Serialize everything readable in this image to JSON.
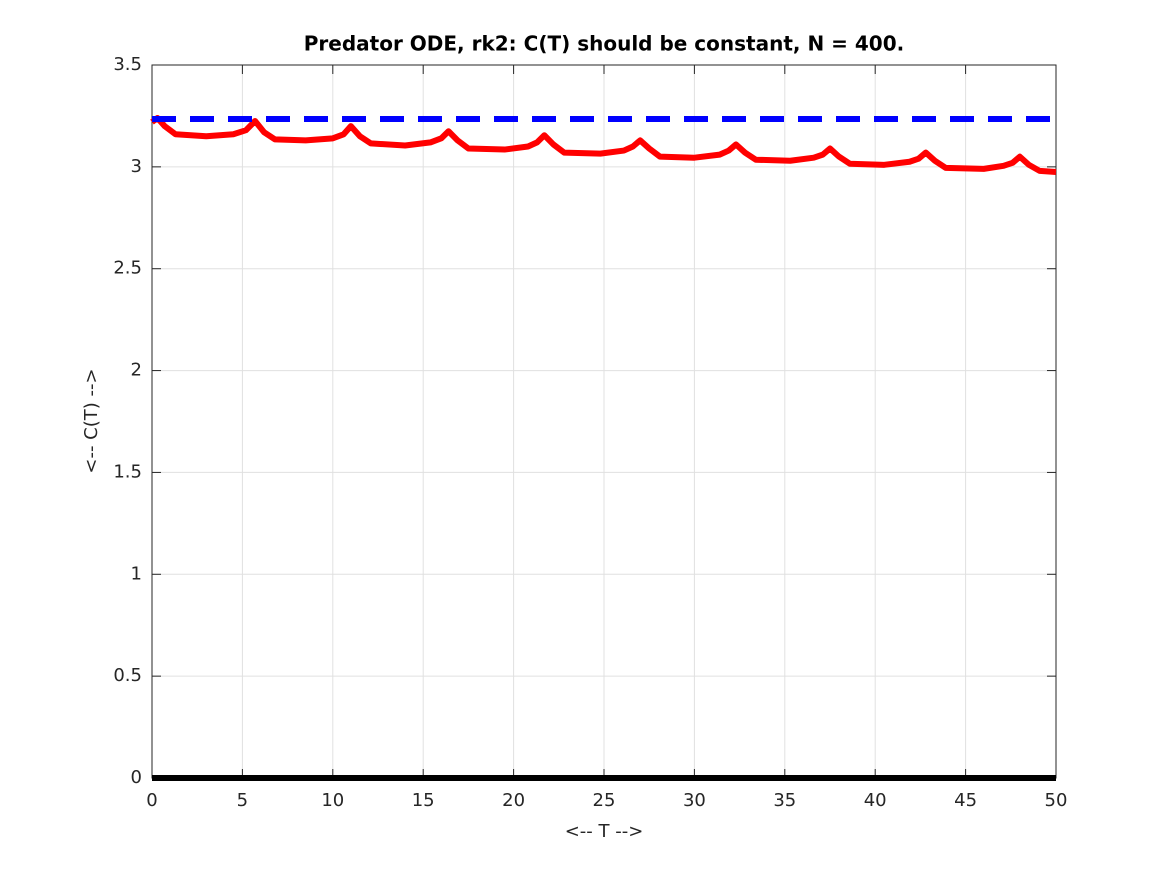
{
  "chart_data": {
    "type": "line",
    "title": "Predator ODE, rk2: C(T) should be constant, N = 400.",
    "x_label": "<-- T -->",
    "y_label": "<-- C(T) -->",
    "xlim": [
      0,
      50
    ],
    "xticks": [
      0,
      5,
      10,
      15,
      20,
      25,
      30,
      35,
      40,
      45,
      50
    ],
    "ylim": [
      0,
      3.5
    ],
    "yticks": [
      0,
      0.5,
      1,
      1.5,
      2,
      2.5,
      3,
      3.5
    ],
    "grid": true,
    "series": [
      {
        "color": "#ff0000",
        "line_style": "solid",
        "x": [
          0,
          0.3,
          0.7,
          1.3,
          3,
          4.5,
          5.2,
          5.7,
          6.2,
          6.8,
          8.5,
          10,
          10.6,
          11.0,
          11.5,
          12.1,
          14,
          15.4,
          16.0,
          16.4,
          16.9,
          17.5,
          19.5,
          20.8,
          21.3,
          21.7,
          22.2,
          22.8,
          24.8,
          26.1,
          26.6,
          27.0,
          27.5,
          28.1,
          30,
          31.4,
          31.9,
          32.3,
          32.8,
          33.4,
          35.3,
          36.6,
          37.1,
          37.5,
          38.0,
          38.6,
          40.5,
          41.9,
          42.4,
          42.8,
          43.3,
          43.9,
          46,
          47.1,
          47.6,
          48.0,
          48.5,
          49.1,
          50
        ],
        "values": [
          3.22,
          3.24,
          3.2,
          3.16,
          3.15,
          3.16,
          3.18,
          3.225,
          3.17,
          3.135,
          3.13,
          3.14,
          3.16,
          3.2,
          3.15,
          3.115,
          3.105,
          3.12,
          3.14,
          3.175,
          3.13,
          3.09,
          3.085,
          3.1,
          3.12,
          3.155,
          3.11,
          3.07,
          3.065,
          3.08,
          3.1,
          3.13,
          3.09,
          3.05,
          3.045,
          3.06,
          3.08,
          3.11,
          3.07,
          3.035,
          3.03,
          3.045,
          3.06,
          3.09,
          3.05,
          3.015,
          3.01,
          3.025,
          3.04,
          3.07,
          3.03,
          2.995,
          2.99,
          3.005,
          3.02,
          3.05,
          3.01,
          2.98,
          2.975
        ]
      },
      {
        "color": "#0000ff",
        "line_style": "dashed",
        "x": [
          0,
          50
        ],
        "values": [
          3.235,
          3.235
        ]
      },
      {
        "color": "#000000",
        "line_style": "solid",
        "x": [
          0,
          50
        ],
        "values": [
          0,
          0
        ]
      }
    ]
  }
}
